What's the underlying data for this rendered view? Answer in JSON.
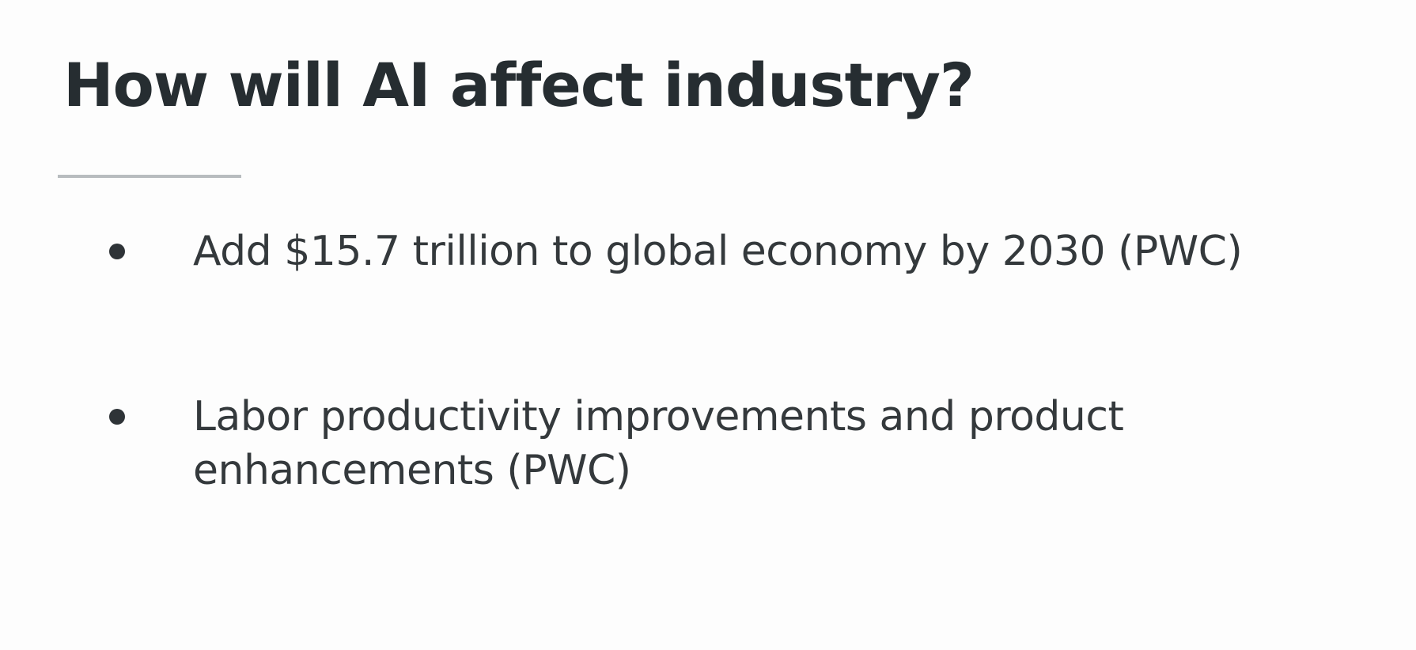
{
  "slide": {
    "title": "How will AI affect industry?",
    "bullets": [
      {
        "text": "Add $15.7 trillion to global economy by 2030 (PWC)"
      },
      {
        "text": "Labor productivity improvements and product enhancements (PWC)"
      }
    ]
  },
  "colors": {
    "background": "#fdfdfd",
    "title": "#262d31",
    "body_text": "#34393c",
    "divider": "#b8bcbf"
  }
}
